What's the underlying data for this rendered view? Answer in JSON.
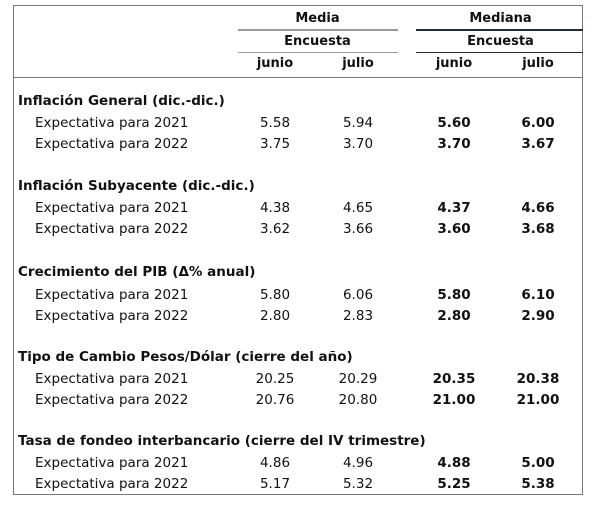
{
  "header": {
    "media": "Media",
    "mediana": "Mediana",
    "encuesta_media": "Encuesta",
    "encuesta_mediana": "Encuesta",
    "col_junio_1": "junio",
    "col_julio_1": "julio",
    "col_junio_2": "junio",
    "col_julio_2": "julio"
  },
  "sections": [
    {
      "title": "Inflación General (dic.-dic.)",
      "rows": [
        {
          "label": "Expectativa para 2021",
          "media_junio": "5.58",
          "media_julio": "5.94",
          "mediana_junio": "5.60",
          "mediana_julio": "6.00"
        },
        {
          "label": "Expectativa para 2022",
          "media_junio": "3.75",
          "media_julio": "3.70",
          "mediana_junio": "3.70",
          "mediana_julio": "3.67"
        }
      ]
    },
    {
      "title": "Inflación Subyacente (dic.-dic.)",
      "rows": [
        {
          "label": "Expectativa para 2021",
          "media_junio": "4.38",
          "media_julio": "4.65",
          "mediana_junio": "4.37",
          "mediana_julio": "4.66"
        },
        {
          "label": "Expectativa para 2022",
          "media_junio": "3.62",
          "media_julio": "3.66",
          "mediana_junio": "3.60",
          "mediana_julio": "3.68"
        }
      ]
    },
    {
      "title": "Crecimiento del PIB (Δ% anual)",
      "rows": [
        {
          "label": "Expectativa para 2021",
          "media_junio": "5.80",
          "media_julio": "6.06",
          "mediana_junio": "5.80",
          "mediana_julio": "6.10"
        },
        {
          "label": "Expectativa para 2022",
          "media_junio": "2.80",
          "media_julio": "2.83",
          "mediana_junio": "2.80",
          "mediana_julio": "2.90"
        }
      ]
    },
    {
      "title": "Tipo de Cambio Pesos/Dólar (cierre del año)",
      "rows": [
        {
          "label": "Expectativa para 2021",
          "media_junio": "20.25",
          "media_julio": "20.29",
          "mediana_junio": "20.35",
          "mediana_julio": "20.38"
        },
        {
          "label": "Expectativa para 2022",
          "media_junio": "20.76",
          "media_julio": "20.80",
          "mediana_junio": "21.00",
          "mediana_julio": "21.00"
        }
      ]
    },
    {
      "title": "Tasa de fondeo interbancario (cierre del IV trimestre)",
      "rows": [
        {
          "label": "Expectativa para 2021",
          "media_junio": "4.86",
          "media_julio": "4.96",
          "mediana_junio": "4.88",
          "mediana_julio": "5.00"
        },
        {
          "label": "Expectativa para 2022",
          "media_junio": "5.17",
          "media_julio": "5.32",
          "mediana_junio": "5.25",
          "mediana_julio": "5.38"
        }
      ]
    }
  ]
}
